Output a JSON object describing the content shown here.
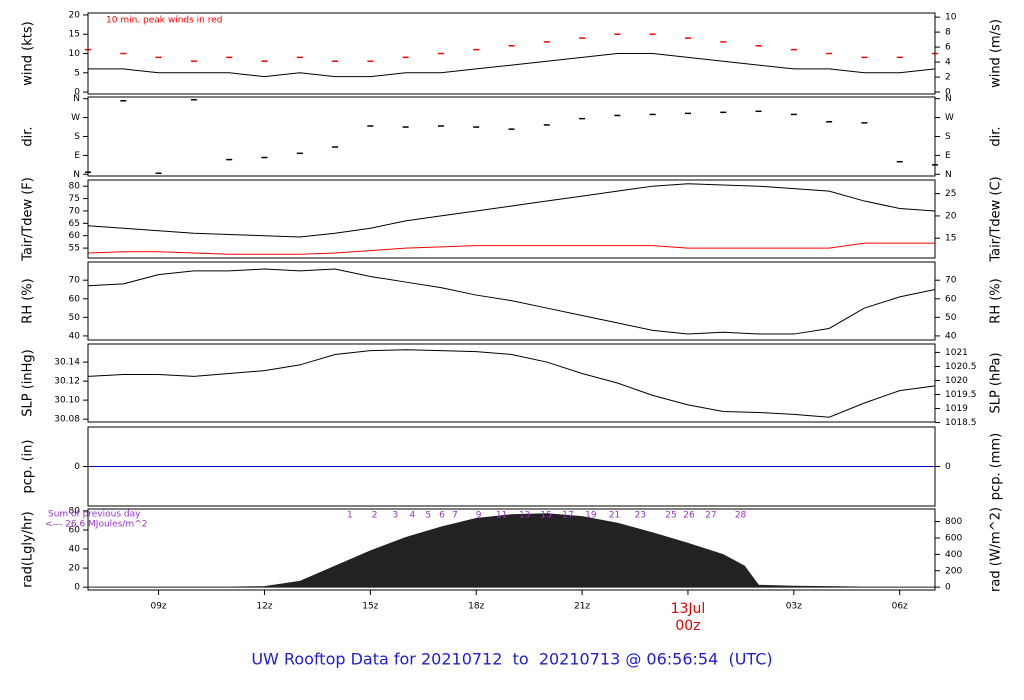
{
  "title": "UW Rooftop Data for 20210712  to  20210713 @ 06:56:54  (UTC)",
  "title_color": "#2020d0",
  "chart_data": [
    {
      "type": "line",
      "ylabel": "wind (kts)",
      "y2label": "wind (m/s)",
      "annotation": "10 min. peak winds in red",
      "annotation_color": "#ff0000",
      "xlim": [
        7,
        31
      ],
      "ylim": [
        -0.5,
        20.5
      ],
      "yticks": [
        0,
        5,
        10,
        15,
        20
      ],
      "y2lim": [
        -0.26,
        10.55
      ],
      "y2ticks": [
        0,
        2,
        4,
        6,
        8,
        10
      ],
      "x": [
        7,
        8,
        9,
        10,
        11,
        12,
        13,
        14,
        15,
        16,
        17,
        18,
        19,
        20,
        21,
        22,
        23,
        24,
        25,
        26,
        27,
        28,
        29,
        30,
        31
      ],
      "series": [
        {
          "name": "wind",
          "color": "#000000",
          "style": "line",
          "values": [
            6,
            6,
            5,
            5,
            5,
            4,
            5,
            4,
            4,
            5,
            5,
            6,
            7,
            8,
            9,
            10,
            10,
            9,
            8,
            7,
            6,
            6,
            5,
            5,
            6
          ]
        },
        {
          "name": "peak",
          "color": "#ff0000",
          "style": "dash",
          "values": [
            11,
            10,
            9,
            8,
            9,
            8,
            9,
            8,
            8,
            9,
            10,
            11,
            12,
            13,
            14,
            15,
            15,
            14,
            13,
            12,
            11,
            10,
            9,
            9,
            10
          ]
        }
      ]
    },
    {
      "type": "scatter",
      "ylabel": "dir.",
      "y2label": "dir.",
      "mirror": true,
      "xlim": [
        7,
        31
      ],
      "ylim": [
        -8,
        368
      ],
      "yticks": [
        {
          "value": 0,
          "label": "N"
        },
        {
          "value": 90,
          "label": "E"
        },
        {
          "value": 180,
          "label": "S"
        },
        {
          "value": 270,
          "label": "W"
        },
        {
          "value": 360,
          "label": "N"
        }
      ],
      "x": [
        7,
        8,
        9,
        10,
        11,
        12,
        13,
        14,
        15,
        16,
        17,
        18,
        19,
        20,
        21,
        22,
        23,
        24,
        25,
        26,
        27,
        28,
        29,
        30,
        31
      ],
      "series": [
        {
          "name": "dir",
          "color": "#000000",
          "style": "dash",
          "values": [
            10,
            350,
            5,
            355,
            70,
            80,
            100,
            130,
            230,
            225,
            230,
            225,
            215,
            235,
            265,
            280,
            285,
            290,
            295,
            300,
            285,
            250,
            245,
            60,
            45
          ]
        }
      ]
    },
    {
      "type": "line",
      "ylabel": "Tair/Tdew (F)",
      "y2label": "Tair/Tdew (C)",
      "xlim": [
        7,
        31
      ],
      "ylim": [
        51,
        82.5
      ],
      "yticks": [
        55,
        60,
        65,
        70,
        75,
        80
      ],
      "y2lim": [
        10.56,
        28.06
      ],
      "y2ticks": [
        15,
        20,
        25
      ],
      "x": [
        7,
        8,
        9,
        10,
        11,
        12,
        13,
        14,
        15,
        16,
        17,
        18,
        19,
        20,
        21,
        22,
        23,
        24,
        25,
        26,
        27,
        28,
        29,
        30,
        31
      ],
      "series": [
        {
          "name": "Tair",
          "color": "#000000",
          "style": "line",
          "values": [
            64,
            63,
            62,
            61,
            60.5,
            60,
            59.5,
            61,
            63,
            66,
            68,
            70,
            72,
            74,
            76,
            78,
            80,
            81,
            80.5,
            80,
            79,
            78,
            74,
            71,
            70
          ]
        },
        {
          "name": "Tdew",
          "color": "#ff0000",
          "style": "line",
          "values": [
            53,
            53.5,
            53.5,
            53,
            52.5,
            52.5,
            52.5,
            53,
            54,
            55,
            55.5,
            56,
            56,
            56,
            56,
            56,
            56,
            55,
            55,
            55,
            55,
            55,
            57,
            57,
            57
          ]
        }
      ]
    },
    {
      "type": "line",
      "ylabel": "RH (%)",
      "y2label": "RH (%)",
      "mirror": true,
      "xlim": [
        7,
        31
      ],
      "ylim": [
        37.8,
        79.8
      ],
      "yticks": [
        40,
        50,
        60,
        70
      ],
      "x": [
        7,
        8,
        9,
        10,
        11,
        12,
        13,
        14,
        15,
        16,
        17,
        18,
        19,
        20,
        21,
        22,
        23,
        24,
        25,
        26,
        27,
        28,
        29,
        30,
        31
      ],
      "series": [
        {
          "name": "RH",
          "color": "#000000",
          "style": "line",
          "values": [
            67,
            68,
            73,
            75,
            75,
            76,
            75,
            76,
            72,
            69,
            66,
            62,
            59,
            55,
            51,
            47,
            43,
            41,
            42,
            41,
            41,
            44,
            55,
            61,
            65
          ]
        }
      ]
    },
    {
      "type": "line",
      "ylabel": "SLP (inHg)",
      "y2label": "SLP (hPa)",
      "xlim": [
        7,
        31
      ],
      "ylim": [
        30.077,
        30.159
      ],
      "yticks": [
        {
          "value": 30.08,
          "label": "30.08"
        },
        {
          "value": 30.1,
          "label": "30.10"
        },
        {
          "value": 30.12,
          "label": "30.12"
        },
        {
          "value": 30.14,
          "label": "30.14"
        }
      ],
      "y2lim": [
        1018.52,
        1021.3
      ],
      "y2ticks": [
        1018.5,
        1019,
        1019.5,
        1020,
        1020.5,
        1021
      ],
      "x": [
        7,
        8,
        9,
        10,
        11,
        12,
        13,
        14,
        15,
        16,
        17,
        18,
        19,
        20,
        21,
        22,
        23,
        24,
        25,
        26,
        27,
        28,
        29,
        30,
        31
      ],
      "series": [
        {
          "name": "SLP",
          "color": "#000000",
          "style": "line",
          "values": [
            30.125,
            30.127,
            30.127,
            30.125,
            30.128,
            30.131,
            30.137,
            30.148,
            30.152,
            30.153,
            30.152,
            30.151,
            30.148,
            30.14,
            30.128,
            30.118,
            30.105,
            30.095,
            30.088,
            30.087,
            30.085,
            30.082,
            30.097,
            30.11,
            30.115
          ]
        }
      ]
    },
    {
      "type": "line",
      "ylabel": "pcp. (in)",
      "y2label": "pcp. (mm)",
      "xlim": [
        7,
        31
      ],
      "ylim": [
        -1,
        1
      ],
      "yticks": [
        0
      ],
      "y2lim": [
        -25.4,
        25.4
      ],
      "y2ticks": [
        0
      ],
      "x": [
        7,
        8,
        9,
        10,
        11,
        12,
        13,
        14,
        15,
        16,
        17,
        18,
        19,
        20,
        21,
        22,
        23,
        24,
        25,
        26,
        27,
        28,
        29,
        30,
        31
      ],
      "series": [
        {
          "name": "pcp",
          "color": "#0000cc",
          "style": "line",
          "values": [
            0,
            0,
            0,
            0,
            0,
            0,
            0,
            0,
            0,
            0,
            0,
            0,
            0,
            0,
            0,
            0,
            0,
            0,
            0,
            0,
            0,
            0,
            0,
            0,
            0
          ]
        }
      ]
    },
    {
      "type": "area",
      "ylabel": "rad(Lgly/hr)",
      "y2label": "rad (W/m^2)",
      "xlim": [
        7,
        31
      ],
      "ylim": [
        -3,
        82
      ],
      "yticks": [
        0,
        20,
        40,
        60,
        80
      ],
      "y2lim": [
        -35,
        954
      ],
      "y2ticks": [
        0,
        200,
        400,
        600,
        800
      ],
      "xticks": [
        {
          "value": 9,
          "label": "09z"
        },
        {
          "value": 12,
          "label": "12z"
        },
        {
          "value": 15,
          "label": "15z"
        },
        {
          "value": 18,
          "label": "18z"
        },
        {
          "value": 21,
          "label": "21z"
        },
        {
          "value": 24,
          "label": "00z"
        },
        {
          "value": 27,
          "label": "03z"
        },
        {
          "value": 30,
          "label": "06z"
        }
      ],
      "date_label": {
        "value": 24,
        "label": "13Jul",
        "color": "#e00000"
      },
      "note": [
        "Sum of previous day",
        "<--- 26.6 MJoules/m^2"
      ],
      "note_color": "#9933cc",
      "cumulative": {
        "values": [
          1,
          2,
          3,
          4,
          5,
          6,
          7,
          9,
          11,
          13,
          15,
          17,
          19,
          21,
          23,
          25,
          26,
          27,
          28
        ],
        "x": [
          14.42,
          15.12,
          15.71,
          16.19,
          16.64,
          17.03,
          17.4,
          18.07,
          18.72,
          19.37,
          19.98,
          20.6,
          21.25,
          21.92,
          22.65,
          23.52,
          24.03,
          24.65,
          25.49
        ]
      },
      "x": [
        7,
        8,
        9,
        10,
        11,
        12,
        13,
        14,
        15,
        16,
        17,
        18,
        19,
        20,
        21,
        22,
        23,
        24,
        25,
        25.6,
        26,
        27,
        28,
        29,
        30,
        31
      ],
      "series": [
        {
          "name": "rad",
          "color": "#222222",
          "style": "area",
          "values": [
            0,
            0,
            0,
            0,
            0,
            0.5,
            6,
            22,
            38,
            52,
            63,
            72,
            76,
            77,
            74,
            67,
            57,
            46,
            34,
            22,
            2,
            1,
            0.5,
            0,
            0,
            0
          ]
        }
      ]
    }
  ]
}
